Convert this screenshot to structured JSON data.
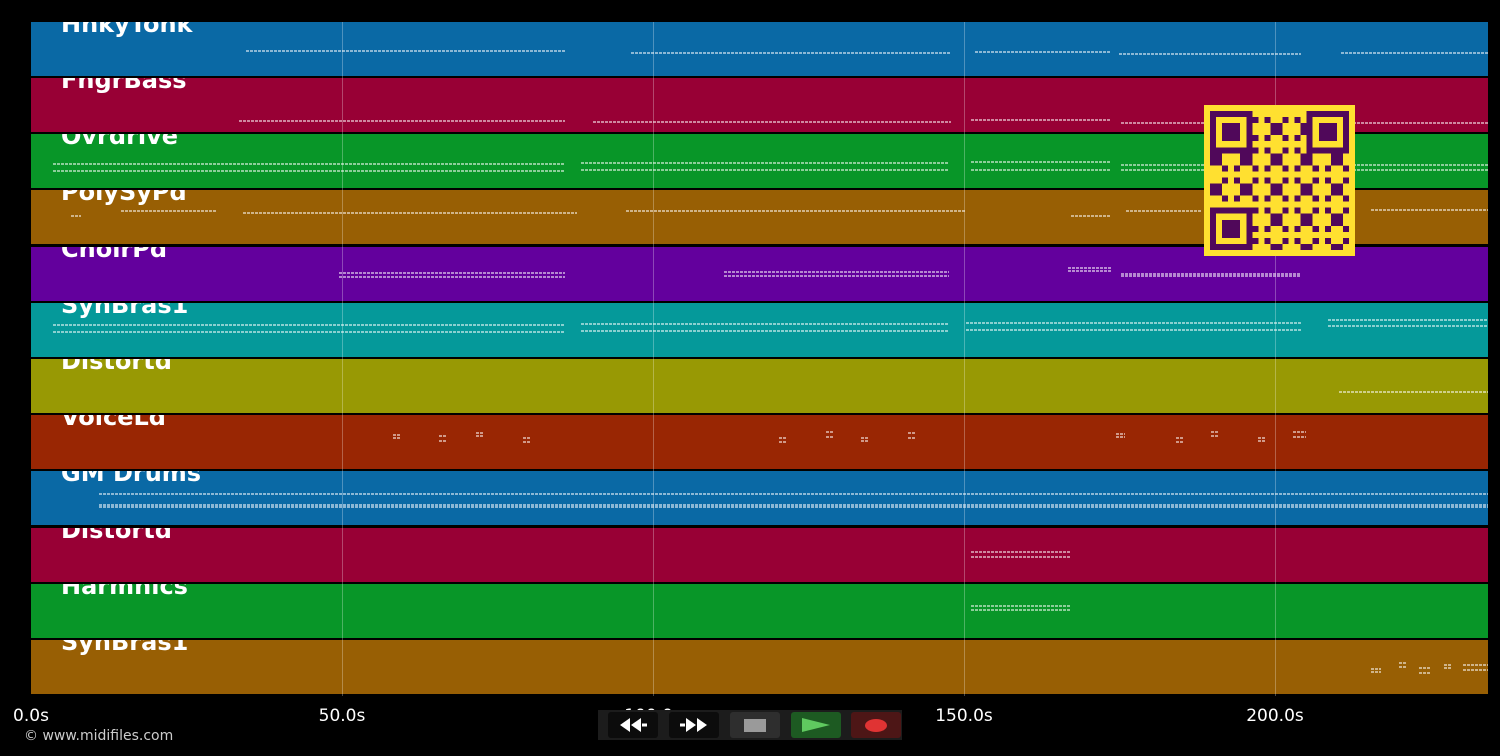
{
  "tracks": [
    {
      "name": "HnkyTonk",
      "color": "#0a69a5"
    },
    {
      "name": "FngrBass",
      "color": "#980035"
    },
    {
      "name": "Ovrdrive",
      "color": "#089628"
    },
    {
      "name": "PolySyPd",
      "color": "#985f04"
    },
    {
      "name": "ChoirPd",
      "color": "#63009d"
    },
    {
      "name": "SynBras1",
      "color": "#05999a"
    },
    {
      "name": "Distortd",
      "color": "#989904"
    },
    {
      "name": "VoiceLd",
      "color": "#992603"
    },
    {
      "name": "GM Drums",
      "color": "#0a69a5"
    },
    {
      "name": "Distortd",
      "color": "#980035"
    },
    {
      "name": "Harmnics",
      "color": "#089628"
    },
    {
      "name": "SynBras1",
      "color": "#985f04"
    }
  ],
  "timeline": {
    "ticks": [
      "0.0s",
      "50.0s",
      "100.0s",
      "150.0s",
      "200.0s"
    ],
    "tick_values": [
      0,
      50,
      100,
      150,
      200
    ],
    "range_seconds": [
      0,
      234
    ]
  },
  "copyright": "© www.midifiles.com",
  "transport": {
    "rewind_icon": "rewind-icon",
    "fast_forward_icon": "fast-forward-icon",
    "stop_icon": "stop-icon",
    "play_icon": "play-icon",
    "record_icon": "record-icon"
  },
  "qr_code": {
    "color": "#ffe030",
    "background": "#50085a"
  }
}
